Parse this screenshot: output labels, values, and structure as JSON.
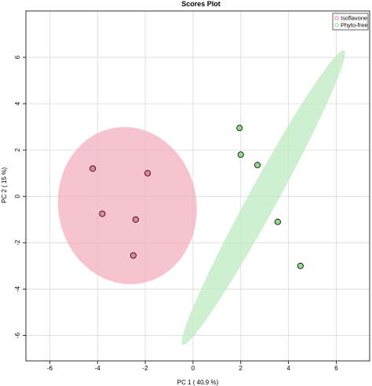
{
  "chart_data": {
    "type": "scatter",
    "title": "Scores Plot",
    "xlabel": "PC 1 ( 40.9 %)",
    "ylabel": "PC 2 ( 15 %)",
    "xlim": [
      -7,
      7.4
    ],
    "ylim": [
      -7.1,
      8
    ],
    "xticks": [
      -6,
      -4,
      -2,
      0,
      2,
      4,
      6
    ],
    "yticks": [
      -6,
      -4,
      -2,
      0,
      2,
      4,
      6
    ],
    "grid": true,
    "legend_position": "top-right",
    "series": [
      {
        "name": "Isoflavone",
        "point_color": "#E8829A",
        "ellipse_color": "#F4AFBE",
        "points": [
          {
            "x": -4.2,
            "y": 1.2
          },
          {
            "x": -1.9,
            "y": 1.0
          },
          {
            "x": -3.8,
            "y": -0.75
          },
          {
            "x": -2.4,
            "y": -1.0
          },
          {
            "x": -2.5,
            "y": -2.55
          }
        ],
        "ellipse": {
          "cx": -2.75,
          "cy": -0.4,
          "rx": 2.9,
          "ry": 3.4,
          "angle_deg": 8
        }
      },
      {
        "name": "Phyto-free",
        "point_color": "#8FD98F",
        "ellipse_color": "#BEEBC0",
        "points": [
          {
            "x": 1.95,
            "y": 2.95
          },
          {
            "x": 2.0,
            "y": 1.8
          },
          {
            "x": 2.7,
            "y": 1.35
          },
          {
            "x": 3.55,
            "y": -1.1
          },
          {
            "x": 4.5,
            "y": -3.0
          }
        ],
        "ellipse": {
          "cx": 2.95,
          "cy": -0.05,
          "rx": 0.6,
          "ry": 7.2,
          "angle_deg": -28
        }
      }
    ]
  }
}
